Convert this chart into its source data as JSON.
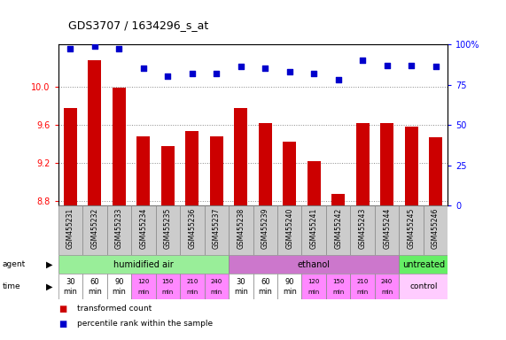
{
  "title": "GDS3707 / 1634296_s_at",
  "samples": [
    "GSM455231",
    "GSM455232",
    "GSM455233",
    "GSM455234",
    "GSM455235",
    "GSM455236",
    "GSM455237",
    "GSM455238",
    "GSM455239",
    "GSM455240",
    "GSM455241",
    "GSM455242",
    "GSM455243",
    "GSM455244",
    "GSM455245",
    "GSM455246"
  ],
  "bar_values": [
    9.78,
    10.28,
    9.99,
    9.48,
    9.38,
    9.54,
    9.48,
    9.78,
    9.62,
    9.42,
    9.22,
    8.87,
    9.62,
    9.62,
    9.58,
    9.47
  ],
  "dot_values": [
    97,
    99,
    97,
    85,
    80,
    82,
    82,
    86,
    85,
    83,
    82,
    78,
    90,
    87,
    87,
    86
  ],
  "ylim_left": [
    8.75,
    10.45
  ],
  "ylim_right": [
    0,
    100
  ],
  "yticks_left": [
    8.8,
    9.2,
    9.6,
    10.0
  ],
  "yticks_right": [
    0,
    25,
    50,
    75,
    100
  ],
  "bar_color": "#cc0000",
  "dot_color": "#0000cc",
  "agent_groups": [
    {
      "label": "humidified air",
      "start": 0,
      "end": 7,
      "color": "#99ee99"
    },
    {
      "label": "ethanol",
      "start": 7,
      "end": 14,
      "color": "#cc77cc"
    },
    {
      "label": "untreated",
      "start": 14,
      "end": 16,
      "color": "#66ee66"
    }
  ],
  "time_labels": [
    "30\nmin",
    "60\nmin",
    "90\nmin",
    "120\nmin",
    "150\nmin",
    "210\nmin",
    "240\nmin",
    "30\nmin",
    "60\nmin",
    "90\nmin",
    "120\nmin",
    "150\nmin",
    "210\nmin",
    "240\nmin"
  ],
  "time_colors": [
    "#ffffff",
    "#ffffff",
    "#ffffff",
    "#ff88ff",
    "#ff88ff",
    "#ff88ff",
    "#ff88ff",
    "#ffffff",
    "#ffffff",
    "#ffffff",
    "#ff88ff",
    "#ff88ff",
    "#ff88ff",
    "#ff88ff"
  ],
  "time_label_14": "control",
  "time_color_14": "#ffccff",
  "background_color": "#ffffff",
  "grid_color": "#888888"
}
